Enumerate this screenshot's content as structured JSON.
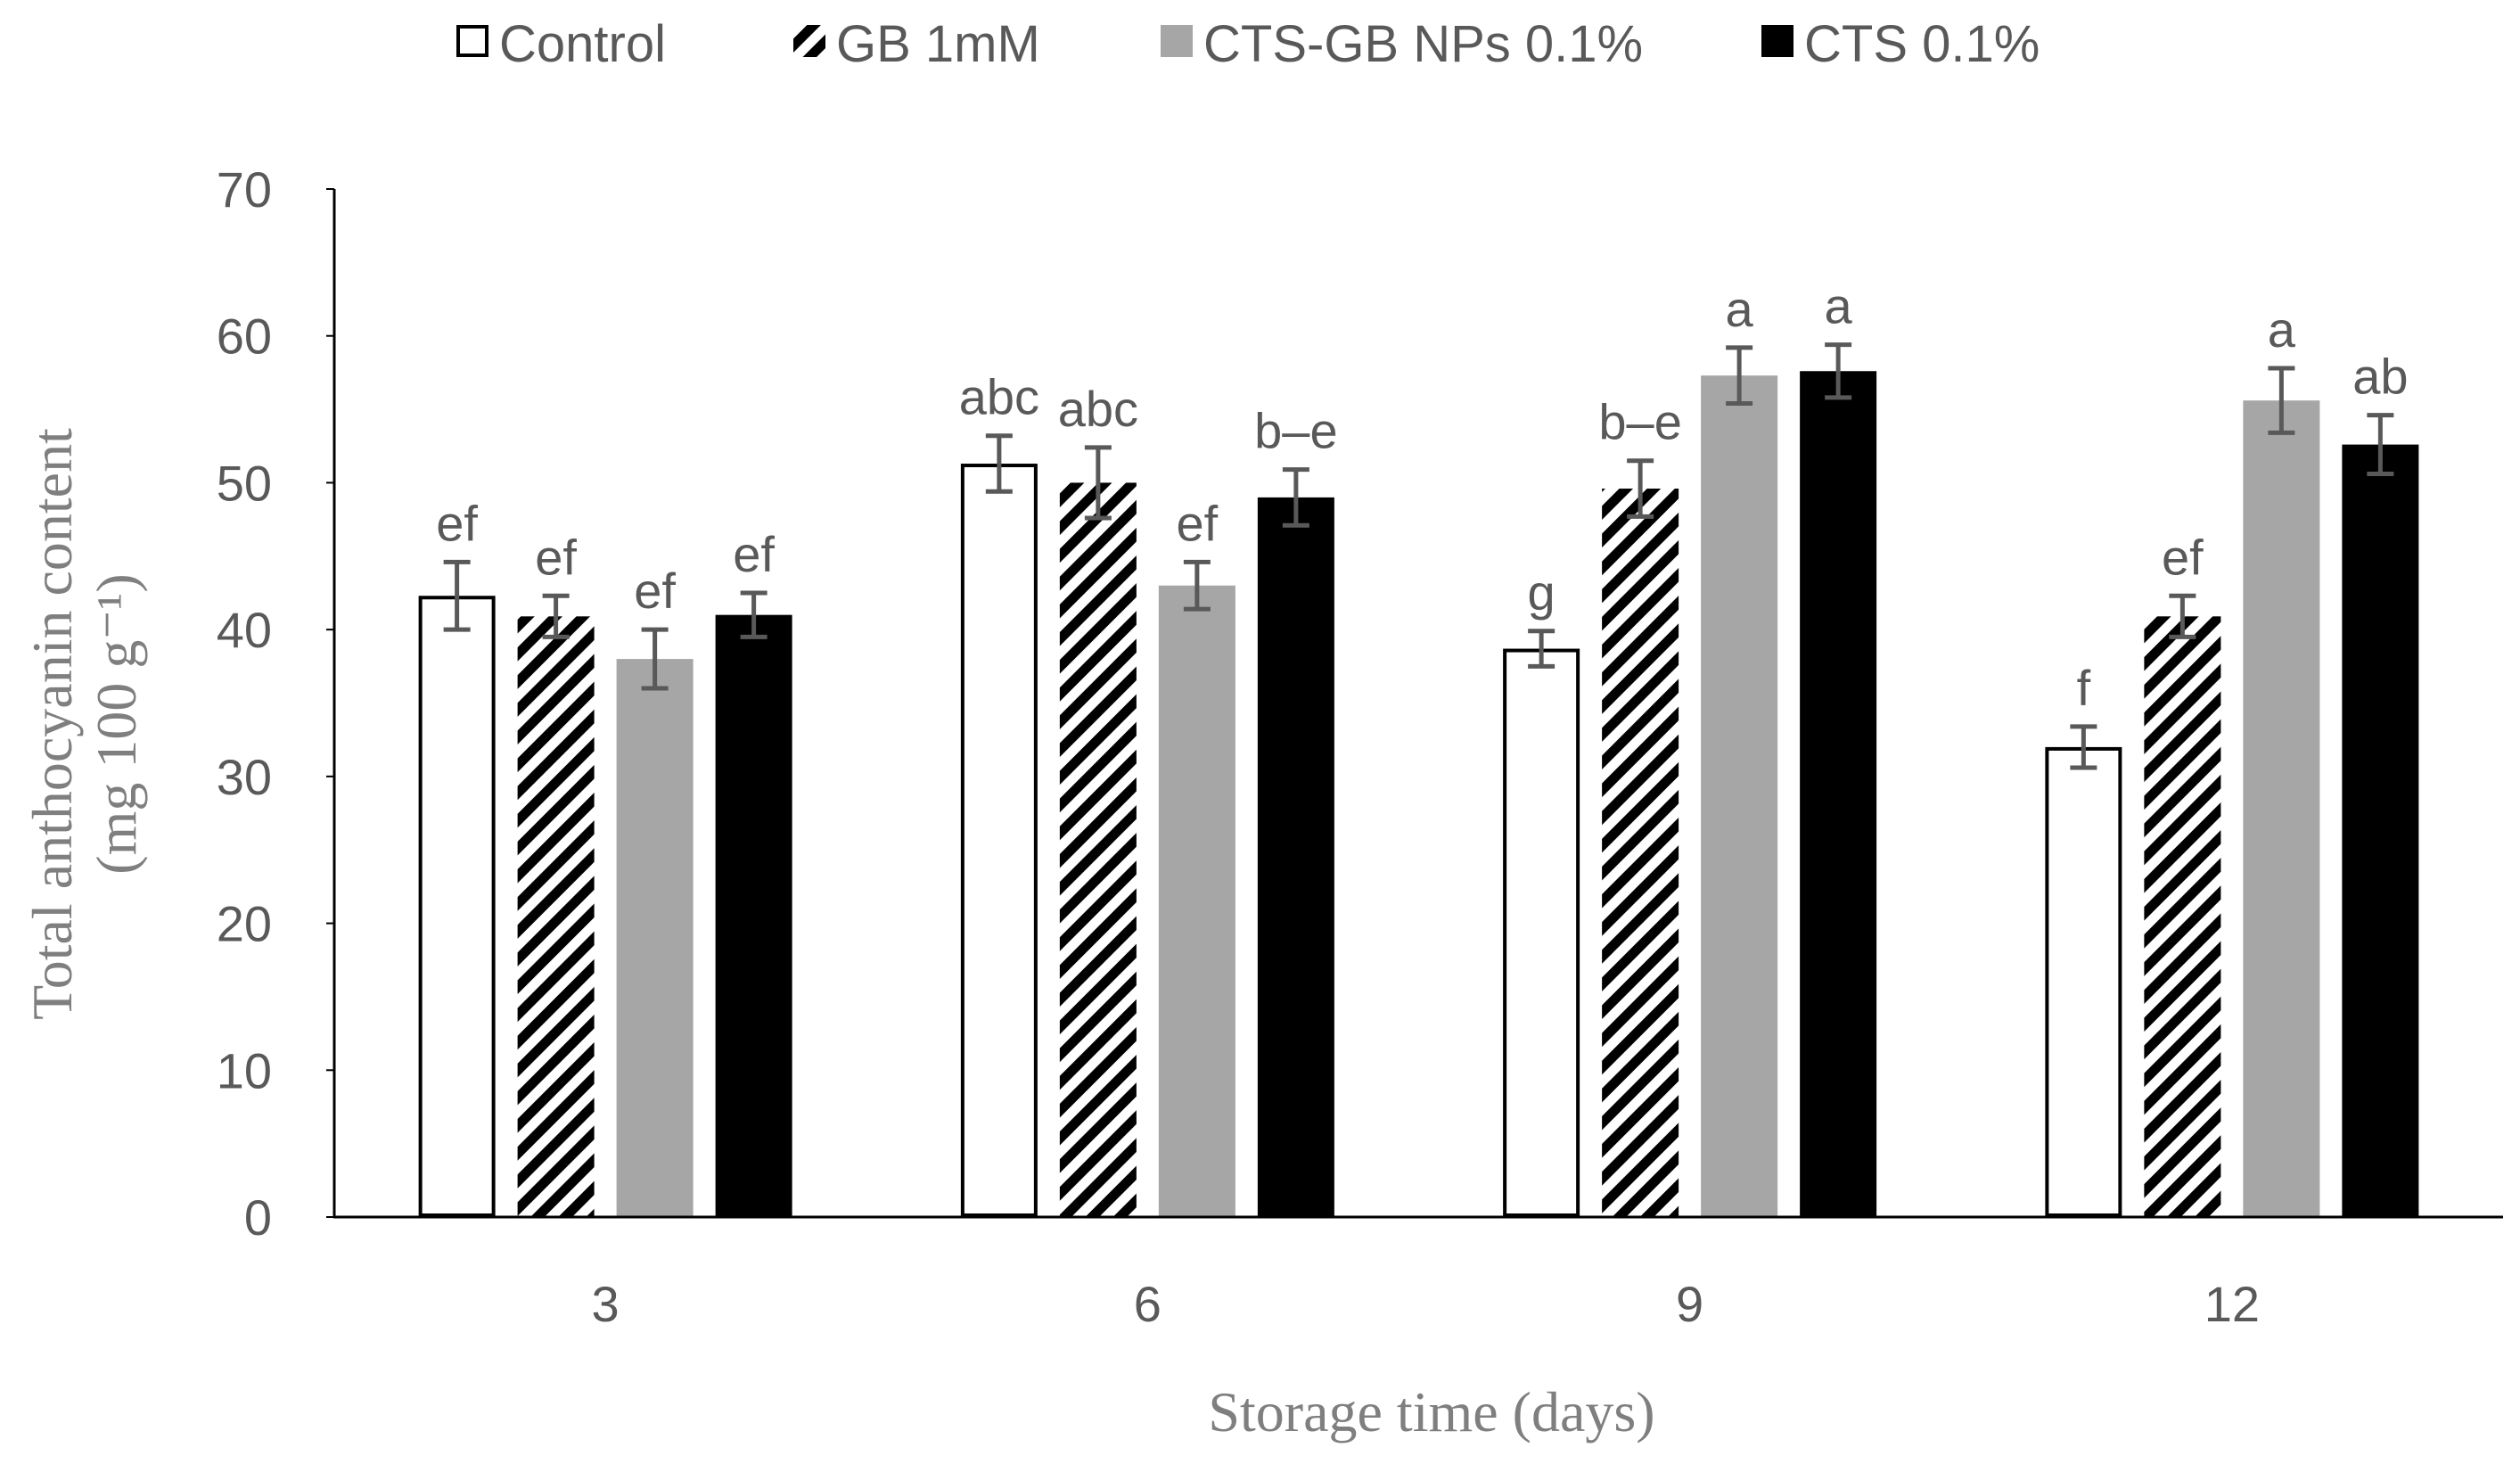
{
  "chart_data": {
    "type": "bar",
    "title": "",
    "xlabel": "Storage time (days)",
    "ylabel": "Total anthocyanin content",
    "ylabel_units": "(mg  100 g⁻¹)",
    "ylim": [
      0,
      70
    ],
    "yticks": [
      0,
      10,
      20,
      30,
      40,
      50,
      60,
      70
    ],
    "grid": false,
    "legend_position": "top-center",
    "categories": [
      "3",
      "6",
      "9",
      "12"
    ],
    "series": [
      {
        "name": "Control",
        "style": "white",
        "values": [
          42.3,
          51.3,
          38.7,
          32.0
        ],
        "errors": [
          2.3,
          1.9,
          1.2,
          1.4
        ],
        "labels": [
          "ef",
          "abc",
          "g",
          "f"
        ]
      },
      {
        "name": "GB 1mM",
        "style": "hatched",
        "values": [
          40.9,
          50.0,
          49.6,
          40.9
        ],
        "errors": [
          1.4,
          2.4,
          1.9,
          1.4
        ],
        "labels": [
          "ef",
          "abc",
          "b–e",
          "ef"
        ]
      },
      {
        "name": "CTS-GB NPs 0.1%",
        "style": "gray",
        "values": [
          38.0,
          43.0,
          57.3,
          55.6
        ],
        "errors": [
          2.0,
          1.6,
          1.9,
          2.2
        ],
        "labels": [
          "ef",
          "ef",
          "a",
          "a"
        ]
      },
      {
        "name": "CTS 0.1%",
        "style": "black",
        "values": [
          41.0,
          49.0,
          57.6,
          52.6
        ],
        "errors": [
          1.5,
          1.9,
          1.8,
          2.0
        ],
        "labels": [
          "ef",
          "b–e",
          "a",
          "ab"
        ]
      }
    ],
    "colors": {
      "text": "#595959",
      "axis": "#000000",
      "error_bar": "#595959",
      "gray_fill": "#a6a6a6",
      "black_fill": "#000000",
      "white_fill": "#ffffff"
    }
  }
}
